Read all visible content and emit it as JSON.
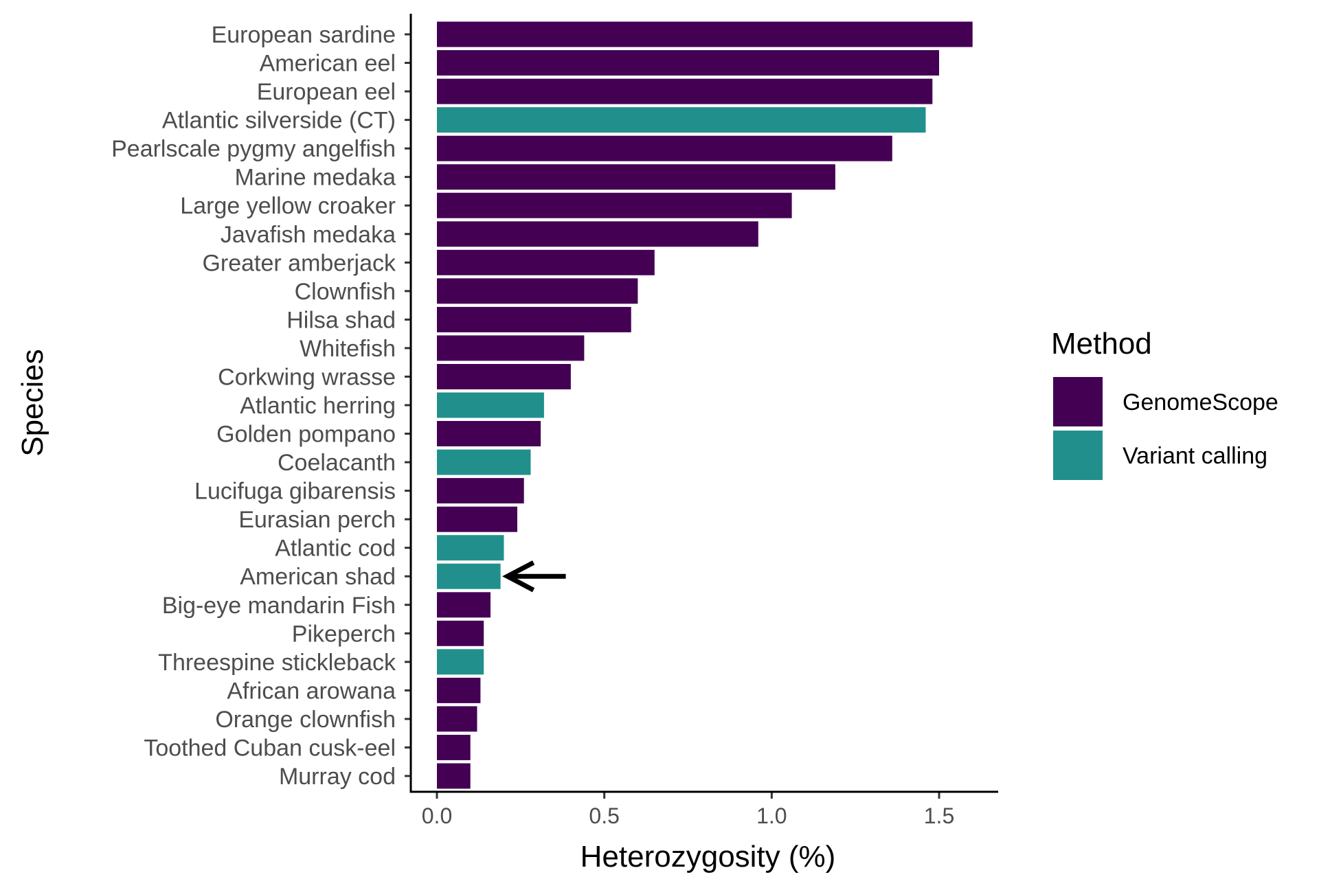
{
  "chart_data": {
    "type": "bar",
    "orientation": "horizontal",
    "xlabel": "Heterozygosity (%)",
    "ylabel": "Species",
    "xlim": [
      -0.08,
      1.68
    ],
    "xticks": [
      0.0,
      0.5,
      1.0,
      1.5
    ],
    "xtick_labels": [
      "0.0",
      "0.5",
      "1.0",
      "1.5"
    ],
    "grid": false,
    "categories": [
      "European sardine",
      "American eel",
      "European eel",
      "Atlantic silverside (CT)",
      "Pearlscale pygmy angelfish",
      "Marine medaka",
      "Large yellow croaker",
      "Javafish medaka",
      "Greater amberjack",
      "Clownfish",
      "Hilsa shad",
      "Whitefish",
      "Corkwing wrasse",
      "Atlantic herring",
      "Golden pompano",
      "Coelacanth",
      "Lucifuga gibarensis",
      "Eurasian perch",
      "Atlantic cod",
      "American shad",
      "Big-eye mandarin Fish",
      "Pikeperch",
      "Threespine stickleback",
      "African arowana",
      "Orange clownfish",
      "Toothed Cuban cusk-eel",
      "Murray cod"
    ],
    "values": [
      1.6,
      1.5,
      1.48,
      1.46,
      1.36,
      1.19,
      1.06,
      0.96,
      0.65,
      0.6,
      0.58,
      0.44,
      0.4,
      0.32,
      0.31,
      0.28,
      0.26,
      0.24,
      0.2,
      0.19,
      0.16,
      0.14,
      0.14,
      0.13,
      0.12,
      0.1,
      0.1
    ],
    "methods": [
      "GenomeScope",
      "GenomeScope",
      "GenomeScope",
      "Variant calling",
      "GenomeScope",
      "GenomeScope",
      "GenomeScope",
      "GenomeScope",
      "GenomeScope",
      "GenomeScope",
      "GenomeScope",
      "GenomeScope",
      "GenomeScope",
      "Variant calling",
      "GenomeScope",
      "Variant calling",
      "GenomeScope",
      "GenomeScope",
      "Variant calling",
      "Variant calling",
      "GenomeScope",
      "GenomeScope",
      "Variant calling",
      "GenomeScope",
      "GenomeScope",
      "GenomeScope",
      "GenomeScope"
    ],
    "legend": {
      "title": "Method",
      "position": "right",
      "entries": [
        {
          "label": "GenomeScope",
          "color": "#440154"
        },
        {
          "label": "Variant calling",
          "color": "#21908C"
        }
      ]
    },
    "annotations": [
      {
        "type": "arrow",
        "target": "American shad",
        "direction": "left"
      }
    ]
  }
}
